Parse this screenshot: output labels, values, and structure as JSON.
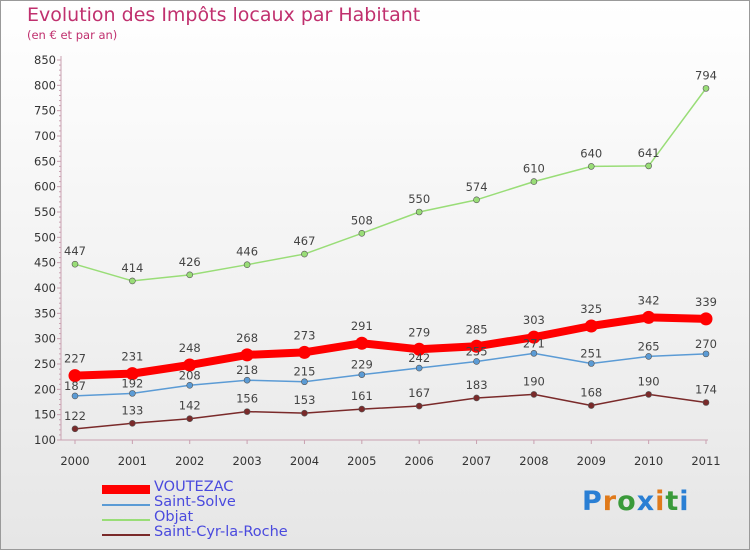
{
  "header": {
    "title": "Evolution des Impôts locaux par Habitant",
    "subtitle": "(en € et par an)"
  },
  "logo": {
    "text": "Proxiti",
    "colors": [
      "#2a7fd4",
      "#e07a1a",
      "#3a9a3a",
      "#2a7fd4",
      "#e07a1a",
      "#3a9a3a",
      "#2a7fd4"
    ]
  },
  "chart_data": {
    "type": "line",
    "x": [
      "2000",
      "2001",
      "2002",
      "2003",
      "2004",
      "2005",
      "2006",
      "2007",
      "2008",
      "2009",
      "2010",
      "2011"
    ],
    "ylim": [
      100,
      850
    ],
    "yticks": [
      100,
      150,
      200,
      250,
      300,
      350,
      400,
      450,
      500,
      550,
      600,
      650,
      700,
      750,
      800,
      850
    ],
    "grid": false,
    "legend": "bottom-left",
    "series": [
      {
        "name": "VOUTEZAC",
        "color": "#ff0000",
        "values": [
          227,
          231,
          248,
          268,
          273,
          291,
          279,
          285,
          303,
          325,
          342,
          339
        ]
      },
      {
        "name": "Saint-Solve",
        "color": "#5b9bd5",
        "values": [
          187,
          192,
          208,
          218,
          215,
          229,
          242,
          255,
          271,
          251,
          265,
          270
        ]
      },
      {
        "name": "Objat",
        "color": "#99dd77",
        "values": [
          447,
          414,
          426,
          446,
          467,
          508,
          550,
          574,
          610,
          640,
          641,
          794
        ]
      },
      {
        "name": "Saint-Cyr-la-Roche",
        "color": "#7a2a2a",
        "values": [
          122,
          133,
          142,
          156,
          153,
          161,
          167,
          183,
          190,
          168,
          190,
          174
        ]
      }
    ]
  }
}
